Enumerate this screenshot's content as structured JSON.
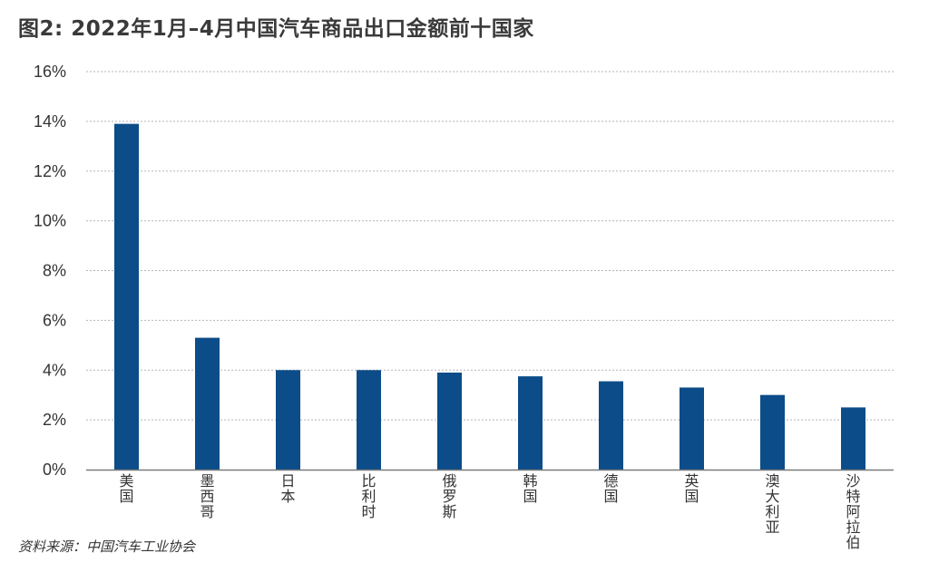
{
  "header": {
    "title": "图2: 2022年1月–4月中国汽车商品出口金额前十国家"
  },
  "footer": {
    "source": "资料来源：中国汽车工业协会"
  },
  "colors": {
    "bar": "#0b4c89",
    "grid": "#b5b5b5",
    "axis": "#7a7a7a",
    "text": "#333333"
  },
  "chart_data": {
    "type": "bar",
    "title": "图2: 2022年1月–4月中国汽车商品出口金额前十国家",
    "xlabel": "",
    "ylabel": "",
    "categories": [
      "美国",
      "墨西哥",
      "日本",
      "比利时",
      "俄罗斯",
      "韩国",
      "德国",
      "英国",
      "澳大利亚",
      "沙特阿拉伯"
    ],
    "values": [
      13.9,
      5.3,
      4.0,
      4.0,
      3.9,
      3.75,
      3.55,
      3.3,
      3.0,
      2.5
    ],
    "unit": "%",
    "ylim": [
      0,
      16
    ],
    "yticks": [
      "0%",
      "2%",
      "4%",
      "6%",
      "8%",
      "10%",
      "12%",
      "14%",
      "16%"
    ],
    "grid": true,
    "legend": "none"
  }
}
